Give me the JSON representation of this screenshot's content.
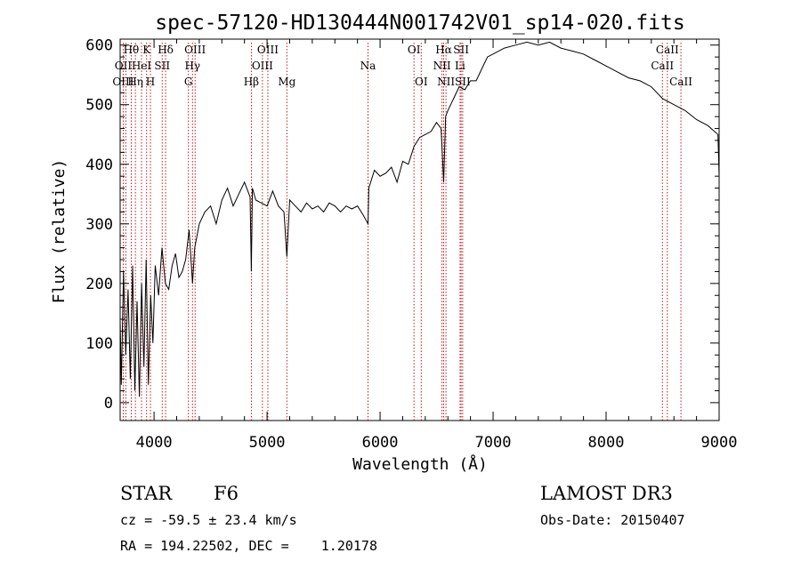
{
  "chart_data": {
    "type": "line",
    "title": "spec-57120-HD130444N001742V01_sp14-020.fits",
    "xlabel": "Wavelength (Å)",
    "ylabel": "Flux (relative)",
    "xlim": [
      3700,
      9000
    ],
    "ylim": [
      -30,
      610
    ],
    "xticks": [
      4000,
      5000,
      6000,
      7000,
      8000,
      9000
    ],
    "yticks": [
      0,
      100,
      200,
      300,
      400,
      500,
      600
    ],
    "grid": false,
    "series": [
      {
        "name": "flux",
        "x": [
          3700,
          3710,
          3730,
          3750,
          3770,
          3790,
          3810,
          3830,
          3850,
          3870,
          3890,
          3910,
          3930,
          3950,
          3970,
          3990,
          4010,
          4040,
          4070,
          4100,
          4130,
          4160,
          4190,
          4220,
          4250,
          4280,
          4310,
          4340,
          4360,
          4400,
          4450,
          4500,
          4550,
          4600,
          4650,
          4700,
          4750,
          4800,
          4850,
          4861,
          4870,
          4900,
          4950,
          5000,
          5050,
          5100,
          5150,
          5175,
          5200,
          5250,
          5300,
          5350,
          5400,
          5450,
          5500,
          5550,
          5600,
          5650,
          5700,
          5750,
          5800,
          5850,
          5893,
          5900,
          5950,
          6000,
          6050,
          6100,
          6150,
          6200,
          6250,
          6300,
          6350,
          6400,
          6450,
          6500,
          6540,
          6563,
          6580,
          6600,
          6650,
          6700,
          6750,
          6800,
          6850,
          6900,
          6950,
          7000,
          7100,
          7200,
          7300,
          7400,
          7500,
          7600,
          7700,
          7800,
          7900,
          8000,
          8100,
          8200,
          8300,
          8400,
          8500,
          8600,
          8700,
          8800,
          8900,
          8990,
          9000
        ],
        "y": [
          140,
          30,
          220,
          80,
          190,
          40,
          230,
          20,
          170,
          10,
          200,
          60,
          240,
          30,
          180,
          100,
          230,
          180,
          260,
          200,
          190,
          230,
          250,
          210,
          220,
          240,
          290,
          200,
          260,
          300,
          320,
          330,
          300,
          340,
          360,
          330,
          350,
          370,
          345,
          220,
          360,
          340,
          335,
          330,
          355,
          330,
          320,
          245,
          340,
          330,
          320,
          335,
          325,
          330,
          320,
          335,
          330,
          320,
          330,
          325,
          330,
          315,
          300,
          360,
          390,
          380,
          385,
          395,
          370,
          405,
          400,
          430,
          445,
          450,
          455,
          470,
          460,
          370,
          480,
          490,
          510,
          530,
          525,
          540,
          540,
          560,
          580,
          585,
          595,
          600,
          605,
          600,
          605,
          595,
          590,
          585,
          575,
          565,
          555,
          545,
          540,
          530,
          510,
          500,
          490,
          475,
          465,
          450,
          380
        ]
      }
    ],
    "annotations": [
      {
        "label": "Hθ",
        "x": 3798,
        "row": 1
      },
      {
        "label": "K",
        "x": 3934,
        "row": 1
      },
      {
        "label": "Hδ",
        "x": 4102,
        "row": 1
      },
      {
        "label": "OIII",
        "x": 4363,
        "row": 1
      },
      {
        "label": "OIII",
        "x": 5007,
        "row": 1
      },
      {
        "label": "OI",
        "x": 6300,
        "row": 1
      },
      {
        "label": "Hα",
        "x": 6563,
        "row": 1
      },
      {
        "label": "SII",
        "x": 6717,
        "row": 1
      },
      {
        "label": "CaII",
        "x": 8542,
        "row": 1
      },
      {
        "label": "OII",
        "x": 3727,
        "row": 2
      },
      {
        "label": "HeI",
        "x": 3889,
        "row": 2
      },
      {
        "label": "SII",
        "x": 4072,
        "row": 2
      },
      {
        "label": "Hγ",
        "x": 4340,
        "row": 2
      },
      {
        "label": "OIII",
        "x": 4959,
        "row": 2
      },
      {
        "label": "Na",
        "x": 5893,
        "row": 2
      },
      {
        "label": "NII",
        "x": 6548,
        "row": 2
      },
      {
        "label": "Li",
        "x": 6708,
        "row": 2
      },
      {
        "label": "CaII",
        "x": 8498,
        "row": 2
      },
      {
        "label": "OIII",
        "x": 3727,
        "row": 3
      },
      {
        "label": "Hη",
        "x": 3835,
        "row": 3
      },
      {
        "label": "H",
        "x": 3968,
        "row": 3
      },
      {
        "label": "G",
        "x": 4304,
        "row": 3
      },
      {
        "label": "Hβ",
        "x": 4861,
        "row": 3
      },
      {
        "label": "Mg",
        "x": 5175,
        "row": 3
      },
      {
        "label": "OI",
        "x": 6364,
        "row": 3
      },
      {
        "label": "NII",
        "x": 6583,
        "row": 3
      },
      {
        "label": "SII",
        "x": 6731,
        "row": 3
      },
      {
        "label": "CaII",
        "x": 8662,
        "row": 3
      }
    ],
    "line_markers_x": [
      3727,
      3750,
      3798,
      3835,
      3889,
      3934,
      3968,
      4072,
      4102,
      4304,
      4340,
      4363,
      4861,
      4959,
      5007,
      5175,
      5893,
      6300,
      6364,
      6548,
      6563,
      6583,
      6708,
      6717,
      6731,
      8498,
      8542,
      8662
    ]
  },
  "info": {
    "class_label": "STAR",
    "subclass": "F6",
    "survey": "LAMOST DR3",
    "cz_text": "cz = -59.5 ± 23.4 km/s",
    "obs_date": "Obs-Date: 20150407",
    "radec_text": "RA = 194.22502, DEC =    1.20178"
  }
}
